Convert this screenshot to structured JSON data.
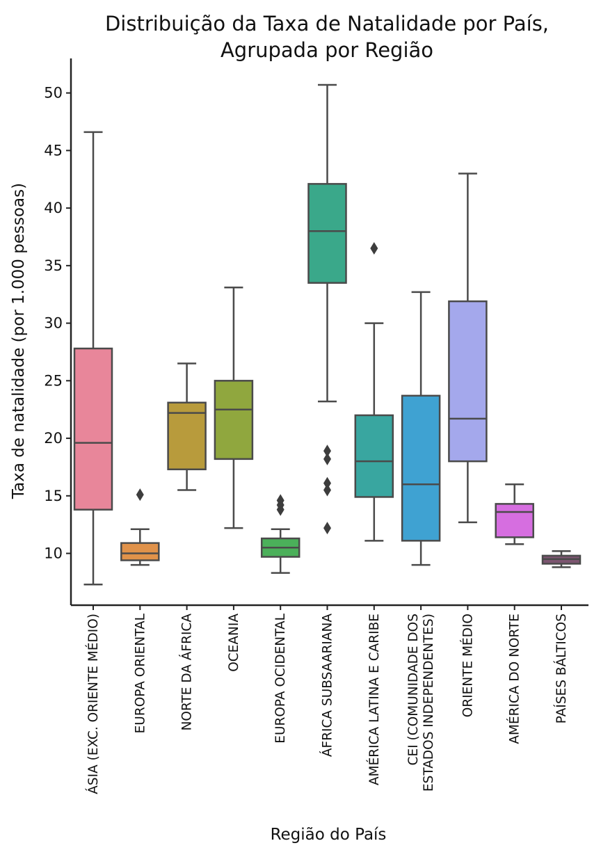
{
  "chart_data": {
    "type": "box",
    "title": [
      "Distribuição da Taxa de Natalidade por País,",
      "Agrupada por Região"
    ],
    "xlabel": "Região do País",
    "ylabel": "Taxa de natalidade (por 1.000 pessoas)",
    "ylim": [
      5.5,
      53
    ],
    "yticks": [
      10,
      15,
      20,
      25,
      30,
      35,
      40,
      45,
      50
    ],
    "categories": [
      {
        "label": [
          "ÁSIA (EXC. ORIENTE MÉDIO)"
        ],
        "color": "#e8869a",
        "whisker_low": 7.3,
        "q1": 13.8,
        "median": 19.6,
        "q3": 27.8,
        "whisker_high": 46.6,
        "outliers": []
      },
      {
        "label": [
          "EUROPA ORIENTAL"
        ],
        "color": "#e0924a",
        "whisker_low": 9.0,
        "q1": 9.4,
        "median": 10.0,
        "q3": 10.9,
        "whisker_high": 12.1,
        "outliers": [
          15.1
        ]
      },
      {
        "label": [
          "NORTE DA ÁFRICA"
        ],
        "color": "#b89b3c",
        "whisker_low": 15.5,
        "q1": 17.3,
        "median": 22.2,
        "q3": 23.1,
        "whisker_high": 26.5,
        "outliers": []
      },
      {
        "label": [
          "OCEANIA"
        ],
        "color": "#90a73e",
        "whisker_low": 12.2,
        "q1": 18.2,
        "median": 22.5,
        "q3": 25.0,
        "whisker_high": 33.1,
        "outliers": []
      },
      {
        "label": [
          "EUROPA OCIDENTAL"
        ],
        "color": "#4bb05a",
        "whisker_low": 8.3,
        "q1": 9.7,
        "median": 10.5,
        "q3": 11.3,
        "whisker_high": 12.1,
        "outliers": [
          13.8,
          14.2,
          14.6
        ]
      },
      {
        "label": [
          "ÁFRICA SUBSAARIANA"
        ],
        "color": "#3aa88a",
        "whisker_low": 23.2,
        "q1": 33.5,
        "median": 38.0,
        "q3": 42.1,
        "whisker_high": 50.7,
        "outliers": [
          12.2,
          15.5,
          16.1,
          18.2,
          18.9
        ]
      },
      {
        "label": [
          "AMÉRICA LATINA E CARIBE"
        ],
        "color": "#39a6a0",
        "whisker_low": 11.1,
        "q1": 14.9,
        "median": 18.0,
        "q3": 22.0,
        "whisker_high": 30.0,
        "outliers": [
          36.5
        ]
      },
      {
        "label": [
          "CEI (COMUNIDADE DOS",
          "ESTADOS INDEPENDENTES)"
        ],
        "color": "#3fa2d2",
        "whisker_low": 9.0,
        "q1": 11.1,
        "median": 16.0,
        "q3": 23.7,
        "whisker_high": 32.7,
        "outliers": []
      },
      {
        "label": [
          "ORIENTE MÉDIO"
        ],
        "color": "#a4a8ec",
        "whisker_low": 12.7,
        "q1": 18.0,
        "median": 21.7,
        "q3": 31.9,
        "whisker_high": 43.0,
        "outliers": []
      },
      {
        "label": [
          "AMÉRICA DO NORTE"
        ],
        "color": "#d66ee0",
        "whisker_low": 10.8,
        "q1": 11.4,
        "median": 13.6,
        "q3": 14.3,
        "whisker_high": 16.0,
        "outliers": []
      },
      {
        "label": [
          "PAÍSES BÁLTICOS"
        ],
        "color": "#7c5570",
        "whisker_low": 8.8,
        "q1": 9.1,
        "median": 9.5,
        "q3": 9.8,
        "whisker_high": 10.2,
        "outliers": []
      }
    ]
  }
}
